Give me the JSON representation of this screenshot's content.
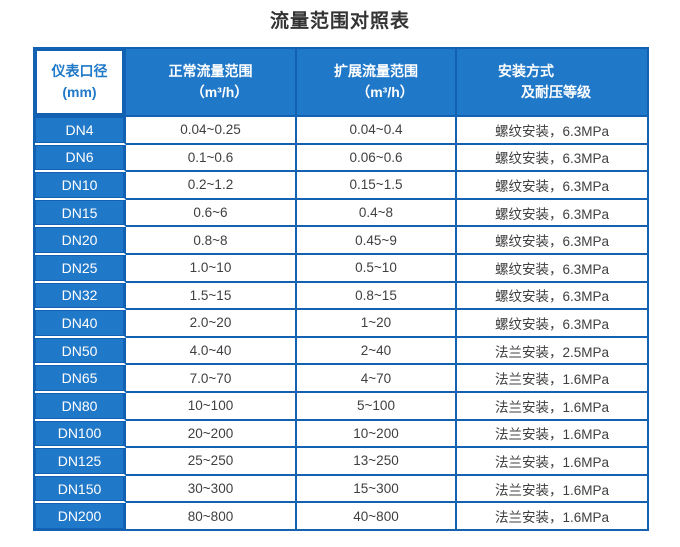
{
  "title": "流量范围对照表",
  "colors": {
    "header_blue": "#2078c8",
    "border_blue": "#1261b2",
    "data_text": "#3f3f3f",
    "header_text": "#ffffff"
  },
  "table": {
    "headers": [
      {
        "line1": "仪表口径",
        "line2": "(mm)"
      },
      {
        "line1": "正常流量范围",
        "line2": "（m³/h）"
      },
      {
        "line1": "扩展流量范围",
        "line2": "（m³/h）"
      },
      {
        "line1": "安装方式",
        "line2": "及耐压等级"
      }
    ]
  },
  "chart_data": {
    "type": "table",
    "title": "流量范围对照表",
    "columns": [
      "仪表口径 (mm)",
      "正常流量范围（m³/h）",
      "扩展流量范围（m³/h）",
      "安装方式及耐压等级"
    ],
    "rows": [
      [
        "DN4",
        "0.04~0.25",
        "0.04~0.4",
        "螺纹安装，6.3MPa"
      ],
      [
        "DN6",
        "0.1~0.6",
        "0.06~0.6",
        "螺纹安装，6.3MPa"
      ],
      [
        "DN10",
        "0.2~1.2",
        "0.15~1.5",
        "螺纹安装，6.3MPa"
      ],
      [
        "DN15",
        "0.6~6",
        "0.4~8",
        "螺纹安装，6.3MPa"
      ],
      [
        "DN20",
        "0.8~8",
        "0.45~9",
        "螺纹安装，6.3MPa"
      ],
      [
        "DN25",
        "1.0~10",
        "0.5~10",
        "螺纹安装，6.3MPa"
      ],
      [
        "DN32",
        "1.5~15",
        "0.8~15",
        "螺纹安装，6.3MPa"
      ],
      [
        "DN40",
        "2.0~20",
        "1~20",
        "螺纹安装，6.3MPa"
      ],
      [
        "DN50",
        "4.0~40",
        "2~40",
        "法兰安装，2.5MPa"
      ],
      [
        "DN65",
        "7.0~70",
        "4~70",
        "法兰安装，1.6MPa"
      ],
      [
        "DN80",
        "10~100",
        "5~100",
        "法兰安装，1.6MPa"
      ],
      [
        "DN100",
        "20~200",
        "10~200",
        "法兰安装，1.6MPa"
      ],
      [
        "DN125",
        "25~250",
        "13~250",
        "法兰安装，1.6MPa"
      ],
      [
        "DN150",
        "30~300",
        "15~300",
        "法兰安装，1.6MPa"
      ],
      [
        "DN200",
        "80~800",
        "40~800",
        "法兰安装，1.6MPa"
      ]
    ]
  }
}
